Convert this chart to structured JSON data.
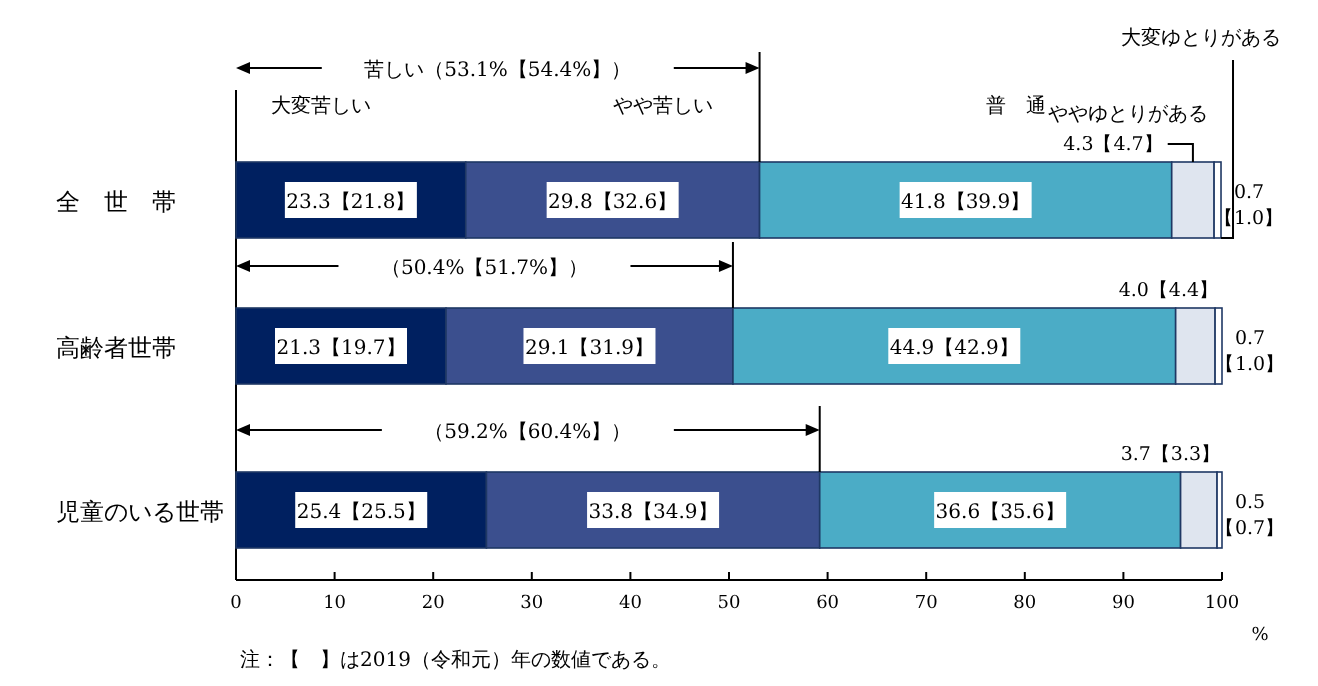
{
  "chart_data": {
    "type": "bar",
    "orientation": "horizontal",
    "stacked": true,
    "categories": [
      "全　世　帯",
      "高齢者世帯",
      "児童のいる世帯"
    ],
    "series": [
      {
        "name": "大変苦しい",
        "color": "#002060",
        "values": [
          23.3,
          21.3,
          25.4
        ],
        "value_labels": [
          "23.3【21.8】",
          "21.3【19.7】",
          "25.4【25.5】"
        ]
      },
      {
        "name": "やや苦しい",
        "color": "#3b4f8e",
        "values": [
          29.8,
          29.1,
          33.8
        ],
        "value_labels": [
          "29.8【32.6】",
          "29.1【31.9】",
          "33.8【34.9】"
        ]
      },
      {
        "name": "普　通",
        "color": "#4bacc6",
        "values": [
          41.8,
          44.9,
          36.6
        ],
        "value_labels": [
          "41.8【39.9】",
          "44.9【42.9】",
          "36.6【35.6】"
        ]
      },
      {
        "name": "ややゆとりがある",
        "color": "#dfe5ef",
        "values": [
          4.3,
          4.0,
          3.7
        ],
        "value_labels": [
          "4.3【4.7】",
          "4.0【4.4】",
          "3.7【3.3】"
        ]
      },
      {
        "name": "大変ゆとりがある",
        "color": "#ffffff",
        "values": [
          0.7,
          0.7,
          0.5
        ],
        "value_labels": [
          "0.7【1.0】",
          "0.7【1.0】",
          "0.5【0.7】"
        ]
      }
    ],
    "annotations": [
      "苦しい（53.1%【54.4%】）",
      "（50.4%【51.7%】）",
      "（59.2%【60.4%】）",
      "注：【　】は2019（令和元）年の数値である。"
    ],
    "xlabel": "%",
    "xlim": [
      0,
      100
    ],
    "xticks": [
      0,
      10,
      20,
      30,
      40,
      50,
      60,
      70,
      80,
      90,
      100
    ]
  }
}
